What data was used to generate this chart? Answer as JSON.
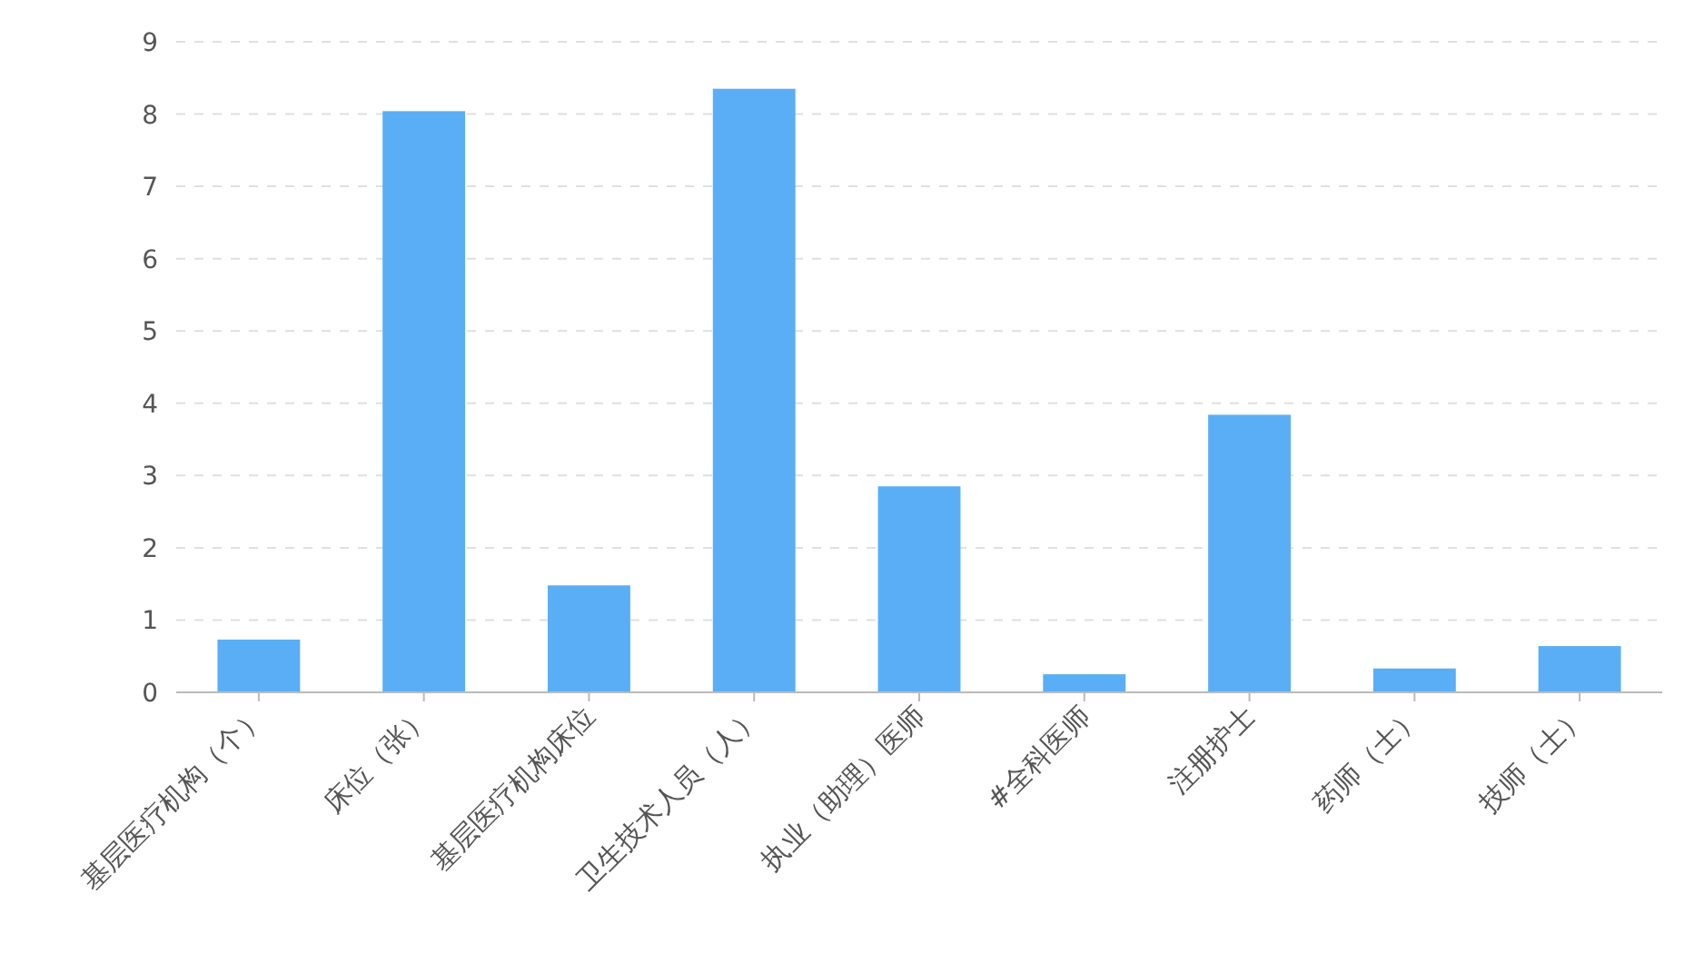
{
  "chart_data": {
    "type": "bar",
    "categories": [
      "基层医疗机构（个）",
      "床位（张）",
      "基层医疗机构床位",
      "卫生技术人员（人）",
      "执业（助理）医师",
      "#全科医师",
      "注册护士",
      "药师（士）",
      "技师（士）"
    ],
    "values": [
      0.73,
      8.04,
      1.48,
      8.35,
      2.85,
      0.25,
      3.84,
      0.33,
      0.64
    ],
    "color": "#5aaef5",
    "ylim": [
      0,
      9
    ],
    "yticks": [
      0,
      1,
      2,
      3,
      4,
      5,
      6,
      7,
      8,
      9
    ],
    "grid": "y"
  }
}
